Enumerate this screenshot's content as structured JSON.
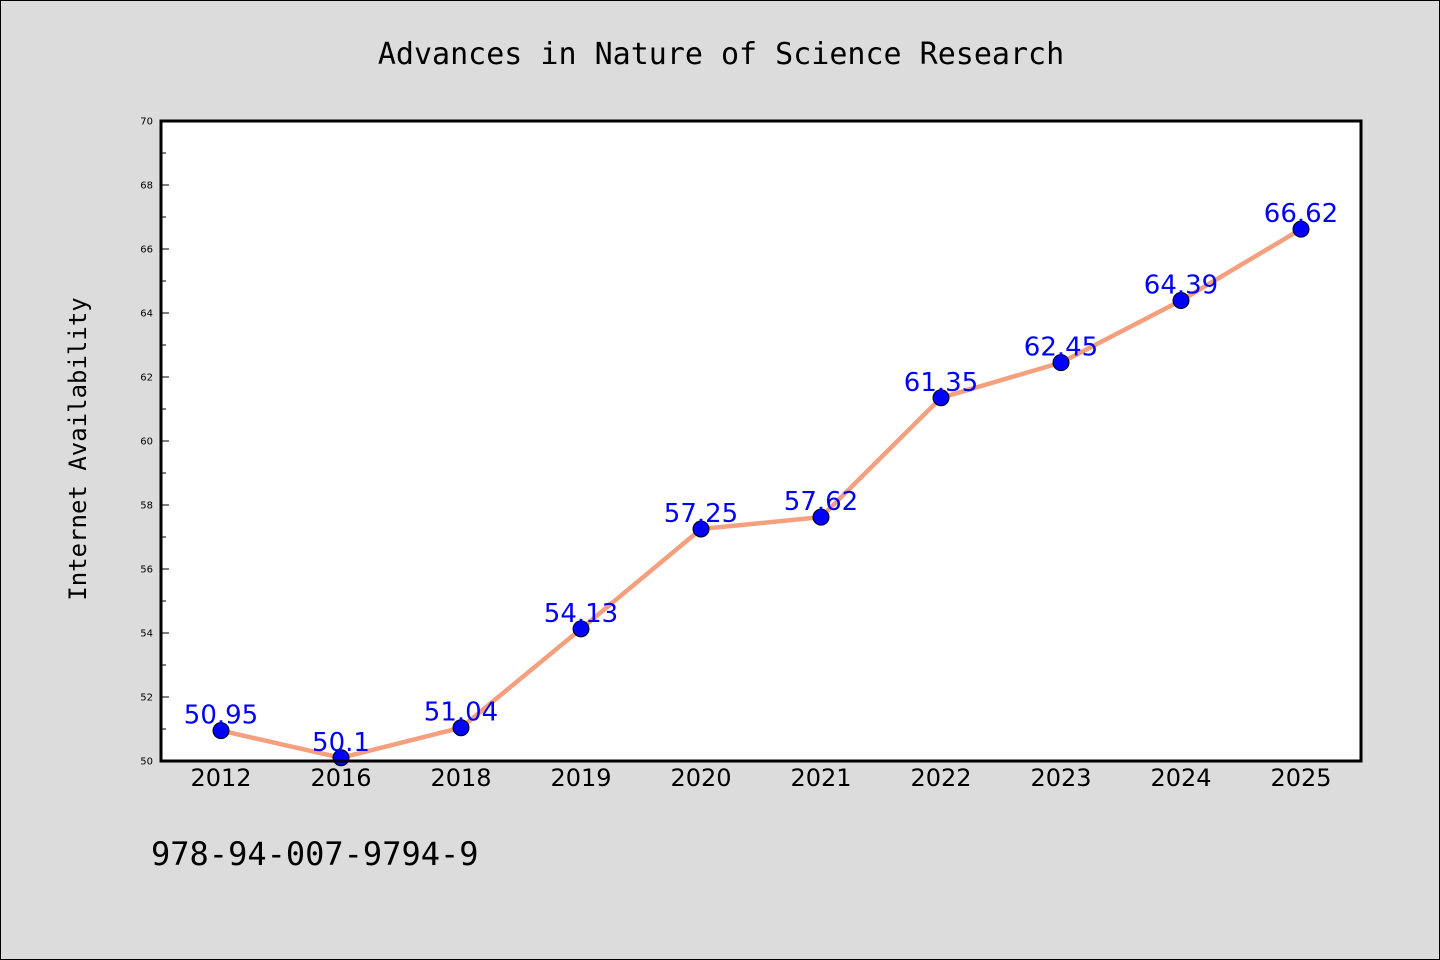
{
  "chart_data": {
    "type": "line",
    "title": "Advances in Nature of Science Research",
    "xlabel": "",
    "ylabel": "Internet Availability",
    "categories": [
      "2012",
      "2016",
      "2018",
      "2019",
      "2020",
      "2021",
      "2022",
      "2023",
      "2024",
      "2025"
    ],
    "series": [
      {
        "values": [
          50.95,
          50.1,
          51.04,
          54.13,
          57.25,
          57.62,
          61.35,
          62.45,
          64.39,
          66.62
        ],
        "labels": [
          "50.95",
          "50.1",
          "51.04",
          "54.13",
          "57.25",
          "57.62",
          "61.35",
          "62.45",
          "64.39",
          "66.62"
        ]
      }
    ],
    "ylim": [
      50,
      70
    ],
    "yticks": [
      "50",
      "52",
      "54",
      "56",
      "58",
      "60",
      "62",
      "64",
      "66",
      "68",
      "70"
    ],
    "grid": false,
    "legend": "none",
    "colors": {
      "line": "#f4a07e",
      "marker": "#0000ff",
      "data_label": "#0000ff",
      "background": "#dcdcdc",
      "plot_background": "#ffffff"
    }
  },
  "footnote": "978-94-007-9794-9"
}
